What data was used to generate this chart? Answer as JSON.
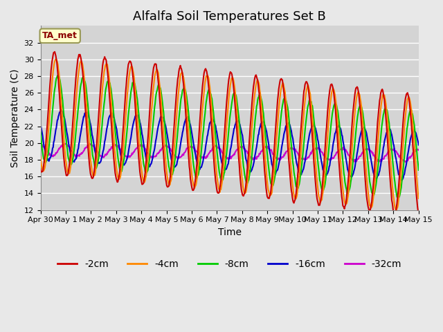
{
  "title": "Alfalfa Soil Temperatures Set B",
  "xlabel": "Time",
  "ylabel": "Soil Temperature (C)",
  "ylim": [
    12,
    34
  ],
  "yticks": [
    12,
    14,
    16,
    18,
    20,
    22,
    24,
    26,
    28,
    30,
    32
  ],
  "background_color": "#e8e8e8",
  "plot_bg_color": "#d4d4d4",
  "grid_color": "#ffffff",
  "title_fontsize": 13,
  "label_fontsize": 10,
  "tick_fontsize": 8,
  "series": {
    "-2cm": {
      "color": "#cc0000",
      "lw": 1.5
    },
    "-4cm": {
      "color": "#ff8800",
      "lw": 1.5
    },
    "-8cm": {
      "color": "#00cc00",
      "lw": 1.5
    },
    "-16cm": {
      "color": "#0000cc",
      "lw": 1.5
    },
    "-32cm": {
      "color": "#cc00cc",
      "lw": 1.5
    }
  },
  "annotation": {
    "text": "TA_met",
    "fontsize": 9,
    "color": "#8B0000",
    "bg": "#ffffcc",
    "border": "#999955"
  },
  "xticklabels": [
    "Apr 30",
    "May 1",
    "May 2",
    "May 3",
    "May 4",
    "May 5",
    "May 6",
    "May 7",
    "May 8",
    "May 9",
    "May 10",
    "May 11",
    "May 12",
    "May 13",
    "May 14",
    "May 15"
  ],
  "n_days": 15,
  "legend_ncol": 5
}
